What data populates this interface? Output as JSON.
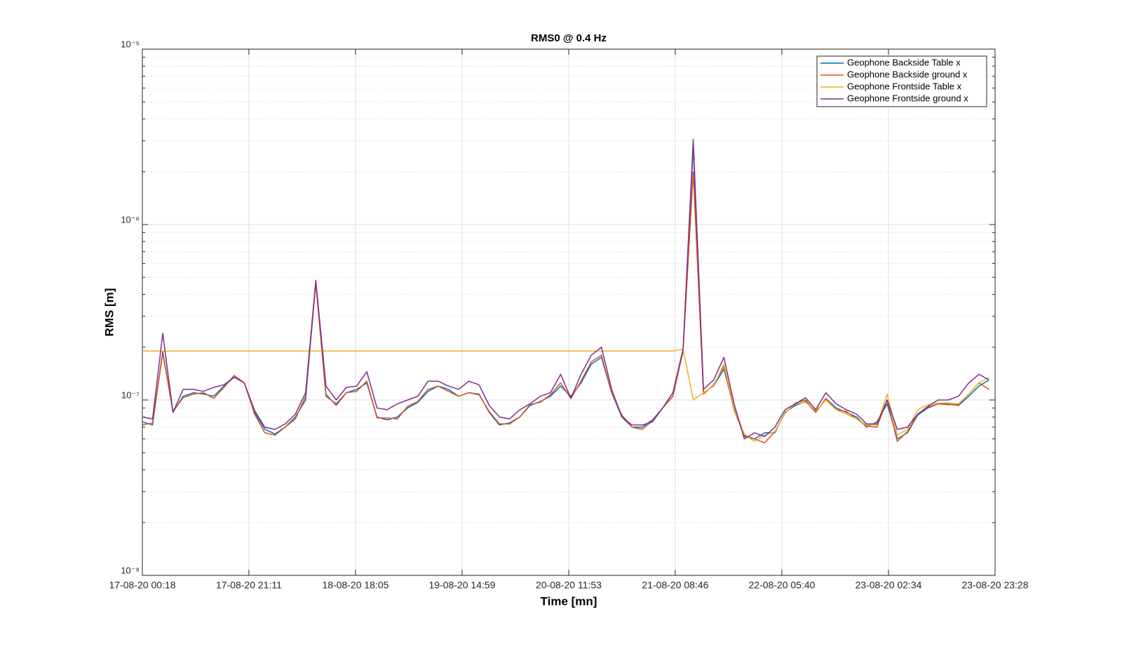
{
  "chart_data": {
    "type": "line",
    "title": "RMS0 @ 0.4 Hz",
    "xlabel": "Time [mn]",
    "ylabel": "RMS [m]",
    "log_y": true,
    "grid": true,
    "legend": "upper right",
    "x": [
      "17-08-20 00:18",
      "17-08-20 02:18",
      "17-08-20 04:18",
      "17-08-20 06:18",
      "17-08-20 08:18",
      "17-08-20 10:18",
      "17-08-20 12:18",
      "17-08-20 14:18",
      "17-08-20 16:18",
      "17-08-20 18:18",
      "17-08-20 20:18",
      "17-08-20 22:18",
      "18-08-20 00:18",
      "18-08-20 02:18",
      "18-08-20 04:18",
      "18-08-20 06:18",
      "18-08-20 08:18",
      "18-08-20 10:18",
      "18-08-20 12:18",
      "18-08-20 14:18",
      "18-08-20 16:18",
      "18-08-20 18:18",
      "18-08-20 20:18",
      "18-08-20 22:18",
      "19-08-20 00:18",
      "19-08-20 02:18",
      "19-08-20 04:18",
      "19-08-20 06:18",
      "19-08-20 08:18",
      "19-08-20 10:18",
      "19-08-20 12:18",
      "19-08-20 14:18",
      "19-08-20 16:18",
      "19-08-20 18:18",
      "19-08-20 20:18",
      "19-08-20 22:18",
      "20-08-20 00:18",
      "20-08-20 02:18",
      "20-08-20 04:18",
      "20-08-20 06:18",
      "20-08-20 08:18",
      "20-08-20 10:18",
      "20-08-20 12:18",
      "20-08-20 14:18",
      "20-08-20 16:18",
      "20-08-20 18:18",
      "20-08-20 20:18",
      "20-08-20 22:18",
      "21-08-20 00:18",
      "21-08-20 02:18",
      "21-08-20 04:18",
      "21-08-20 06:18",
      "21-08-20 08:18",
      "21-08-20 10:18",
      "21-08-20 12:18",
      "21-08-20 14:18",
      "21-08-20 16:18",
      "21-08-20 18:18",
      "21-08-20 20:18",
      "21-08-20 22:18",
      "22-08-20 00:18",
      "22-08-20 02:18",
      "22-08-20 04:18",
      "22-08-20 06:18",
      "22-08-20 08:18",
      "22-08-20 10:18",
      "22-08-20 12:18",
      "22-08-20 14:18",
      "22-08-20 16:18",
      "22-08-20 18:18",
      "22-08-20 20:18",
      "22-08-20 22:18",
      "23-08-20 00:18",
      "23-08-20 02:18",
      "23-08-20 04:18",
      "23-08-20 06:18",
      "23-08-20 08:18",
      "23-08-20 10:18",
      "23-08-20 12:18",
      "23-08-20 14:18",
      "23-08-20 16:18",
      "23-08-20 18:18",
      "23-08-20 20:18",
      "23-08-20 22:18"
    ],
    "series": [
      {
        "name": "Geophone Backside Table x",
        "color": "#0072BD",
        "values": [
          7.5e-08,
          7.2e-08,
          1.9e-07,
          8.5e-08,
          1.05e-07,
          1.1e-07,
          1.08e-07,
          1.05e-07,
          1.2e-07,
          1.35e-07,
          1.25e-07,
          8.5e-08,
          6.8e-08,
          6.4e-08,
          7e-08,
          8e-08,
          1e-07,
          4.7e-07,
          1.05e-07,
          9.5e-08,
          1.1e-07,
          1.15e-07,
          1.25e-07,
          8e-08,
          7.7e-08,
          8e-08,
          9e-08,
          9.7e-08,
          1.12e-07,
          1.2e-07,
          1.15e-07,
          1.05e-07,
          1.1e-07,
          1.08e-07,
          8.5e-08,
          7.2e-08,
          7.4e-08,
          8e-08,
          9.3e-08,
          9.8e-08,
          1.05e-07,
          1.2e-07,
          1.05e-07,
          1.25e-07,
          1.6e-07,
          1.75e-07,
          1.1e-07,
          8e-08,
          7e-08,
          7e-08,
          7.7e-08,
          9e-08,
          1.05e-07,
          1.9e-07,
          2.8e-06,
          1.1e-07,
          1.2e-07,
          1.5e-07,
          9e-08,
          6.2e-08,
          6e-08,
          6.5e-08,
          6.5e-08,
          8.5e-08,
          9.3e-08,
          9.8e-08,
          8.5e-08,
          1.02e-07,
          9e-08,
          8.5e-08,
          8e-08,
          7e-08,
          7.5e-08,
          9.5e-08,
          6e-08,
          6.5e-08,
          8.2e-08,
          9e-08,
          9.5e-08,
          9.5e-08,
          9.3e-08,
          1.05e-07,
          1.2e-07,
          1.3e-07
        ]
      },
      {
        "name": "Geophone Backside ground x",
        "color": "#D95319",
        "values": [
          7.2e-08,
          7.4e-08,
          1.85e-07,
          8.6e-08,
          1.03e-07,
          1.08e-07,
          1.1e-07,
          1.02e-07,
          1.18e-07,
          1.38e-07,
          1.25e-07,
          8.3e-08,
          6.5e-08,
          6.3e-08,
          7e-08,
          7.8e-08,
          1.05e-07,
          4.6e-07,
          1.08e-07,
          9.3e-08,
          1.1e-07,
          1.12e-07,
          1.28e-07,
          7.9e-08,
          7.9e-08,
          7.8e-08,
          9.2e-08,
          9.8e-08,
          1.15e-07,
          1.2e-07,
          1.12e-07,
          1.05e-07,
          1.1e-07,
          1.07e-07,
          8.6e-08,
          7.3e-08,
          7.3e-08,
          8e-08,
          9.4e-08,
          9.7e-08,
          1.07e-07,
          1.25e-07,
          1.02e-07,
          1.28e-07,
          1.65e-07,
          1.8e-07,
          1.1e-07,
          8.2e-08,
          7e-08,
          6.8e-08,
          7.6e-08,
          9e-08,
          1.05e-07,
          1.9e-07,
          2e-06,
          1.08e-07,
          1.22e-07,
          1.55e-07,
          8.8e-08,
          6.3e-08,
          6e-08,
          5.7e-08,
          6.6e-08,
          8.4e-08,
          9.6e-08,
          1e-07,
          8.5e-08,
          1.02e-07,
          8.8e-08,
          8.6e-08,
          7.8e-08,
          7.1e-08,
          7e-08,
          1e-07,
          5.8e-08,
          6.6e-08,
          8.3e-08,
          9.1e-08,
          9.5e-08,
          9.4e-08,
          9.4e-08,
          1.08e-07,
          1.25e-07,
          1.15e-07
        ]
      },
      {
        "name": "Geophone Frontside Table x",
        "color": "#EDB120",
        "values": [
          1.9e-07,
          1.9e-07,
          1.9e-07,
          1.9e-07,
          1.9e-07,
          1.9e-07,
          1.9e-07,
          1.9e-07,
          1.9e-07,
          1.9e-07,
          1.9e-07,
          1.9e-07,
          1.9e-07,
          1.9e-07,
          1.9e-07,
          1.9e-07,
          1.9e-07,
          1.9e-07,
          1.9e-07,
          1.9e-07,
          1.9e-07,
          1.9e-07,
          1.9e-07,
          1.9e-07,
          1.9e-07,
          1.9e-07,
          1.9e-07,
          1.9e-07,
          1.9e-07,
          1.9e-07,
          1.9e-07,
          1.9e-07,
          1.9e-07,
          1.9e-07,
          1.9e-07,
          1.9e-07,
          1.9e-07,
          1.9e-07,
          1.9e-07,
          1.9e-07,
          1.9e-07,
          1.9e-07,
          1.9e-07,
          1.9e-07,
          1.9e-07,
          1.9e-07,
          1.9e-07,
          1.9e-07,
          1.9e-07,
          1.9e-07,
          1.9e-07,
          1.9e-07,
          1.9e-07,
          1.95e-07,
          1e-07,
          1.1e-07,
          1.2e-07,
          1.6e-07,
          9e-08,
          6.4e-08,
          5.8e-08,
          6.3e-08,
          6.6e-08,
          8.4e-08,
          9.5e-08,
          9.7e-08,
          8.7e-08,
          1e-07,
          8.8e-08,
          8.3e-08,
          7.8e-08,
          7.2e-08,
          7.2e-08,
          1.08e-07,
          6.3e-08,
          6.8e-08,
          8.8e-08,
          9.4e-08,
          9.6e-08,
          9.6e-08,
          9.5e-08,
          1.08e-07,
          1.25e-07,
          1.35e-07
        ]
      },
      {
        "name": "Geophone Frontside ground x",
        "color": "#7E2F8E",
        "values": [
          8e-08,
          7.8e-08,
          2.4e-07,
          8.5e-08,
          1.15e-07,
          1.15e-07,
          1.12e-07,
          1.18e-07,
          1.22e-07,
          1.35e-07,
          1.25e-07,
          8.7e-08,
          7e-08,
          6.8e-08,
          7.3e-08,
          8.3e-08,
          1.1e-07,
          4.8e-07,
          1.2e-07,
          1e-07,
          1.18e-07,
          1.2e-07,
          1.45e-07,
          9e-08,
          8.8e-08,
          9.5e-08,
          1e-07,
          1.05e-07,
          1.28e-07,
          1.28e-07,
          1.2e-07,
          1.15e-07,
          1.28e-07,
          1.22e-07,
          9.3e-08,
          8e-08,
          7.8e-08,
          8.8e-08,
          9.5e-08,
          1.05e-07,
          1.1e-07,
          1.4e-07,
          1.02e-07,
          1.4e-07,
          1.8e-07,
          2e-07,
          1.15e-07,
          8e-08,
          7.2e-08,
          7.2e-08,
          7.5e-08,
          9e-08,
          1.1e-07,
          1.95e-07,
          3.05e-06,
          1.15e-07,
          1.3e-07,
          1.75e-07,
          9.5e-08,
          6e-08,
          6.5e-08,
          6.2e-08,
          7e-08,
          8.8e-08,
          9.5e-08,
          1.03e-07,
          8.8e-08,
          1.1e-07,
          9.5e-08,
          8.8e-08,
          8.3e-08,
          7.3e-08,
          7.3e-08,
          1e-07,
          6.8e-08,
          7e-08,
          8.3e-08,
          9.2e-08,
          1e-07,
          1e-07,
          1.05e-07,
          1.25e-07,
          1.4e-07,
          1.3e-07
        ]
      }
    ],
    "xlim": [
      "17-08-20 00:18",
      "23-08-20 23:28"
    ],
    "xticks": [
      "17-08-20 00:18",
      "17-08-20 21:11",
      "18-08-20 18:05",
      "19-08-20 14:59",
      "20-08-20 11:53",
      "21-08-20 08:46",
      "22-08-20 05:40",
      "23-08-20 02:34",
      "23-08-20 23:28"
    ],
    "ylim": [
      1e-08,
      1e-05
    ],
    "yticks": [
      {
        "value": 1e-08,
        "label": "10⁻⁸"
      },
      {
        "value": 1e-07,
        "label": "10⁻⁷"
      },
      {
        "value": 1e-06,
        "label": "10⁻⁶"
      },
      {
        "value": 1e-05,
        "label": "10⁻⁵"
      }
    ]
  }
}
